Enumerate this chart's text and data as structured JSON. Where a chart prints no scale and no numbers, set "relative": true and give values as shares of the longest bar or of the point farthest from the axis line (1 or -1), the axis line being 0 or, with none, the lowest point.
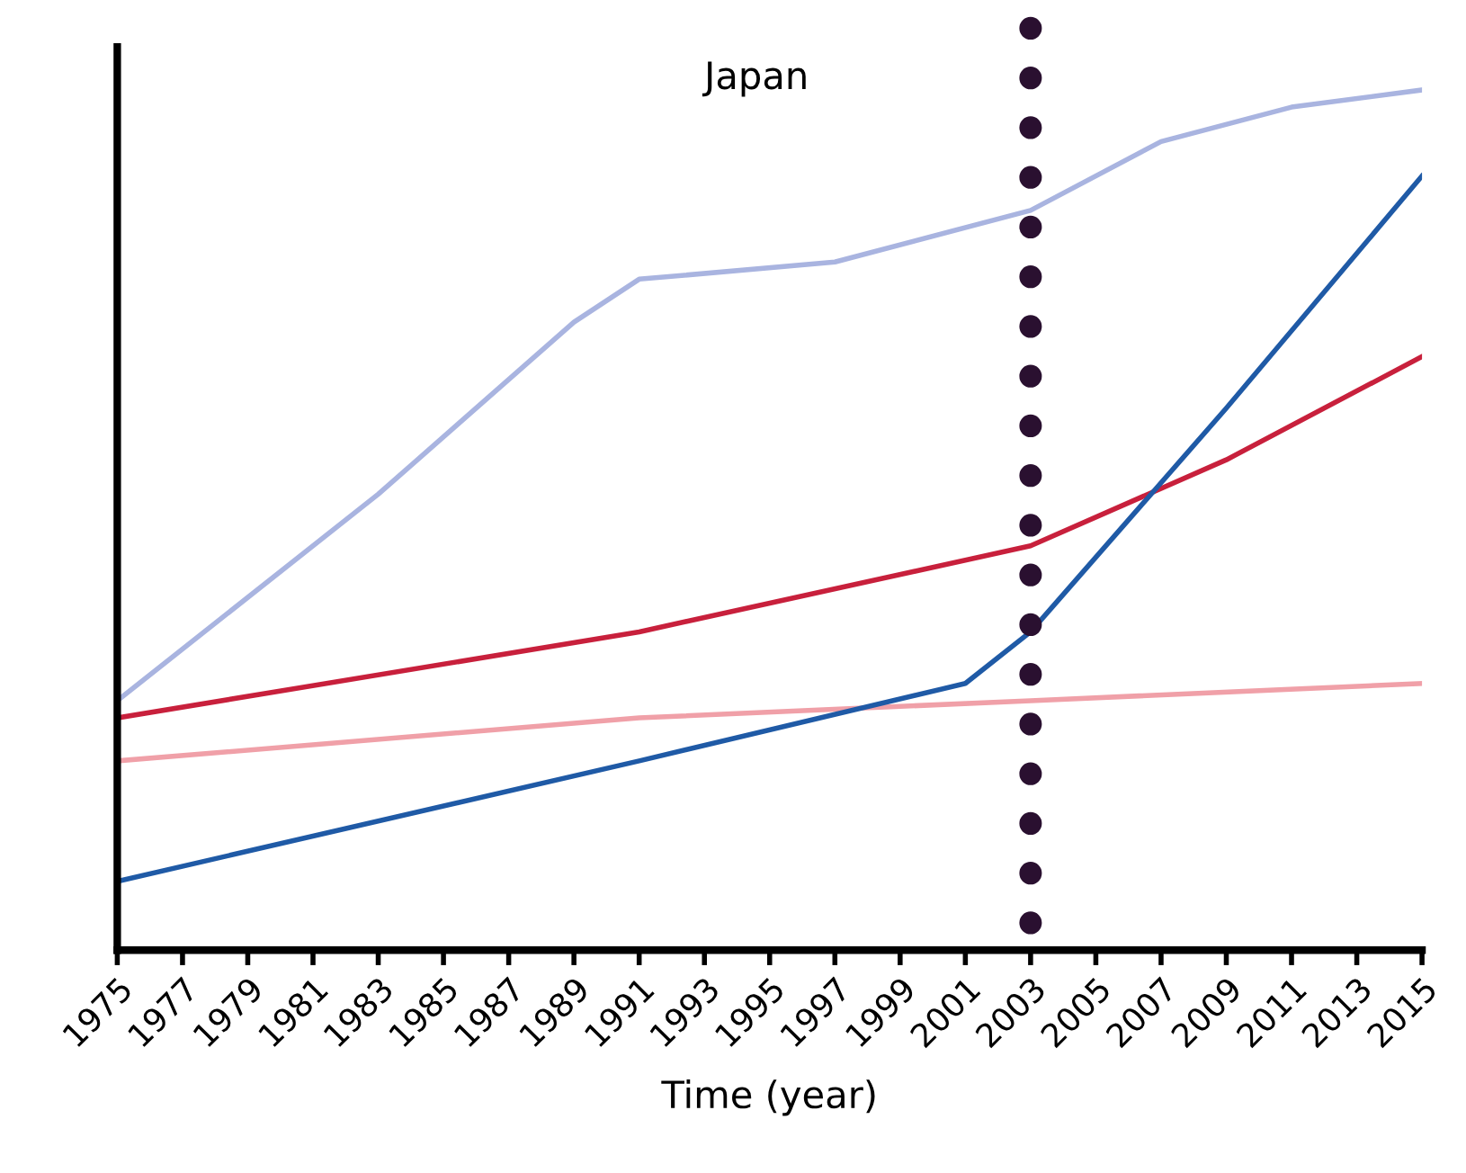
{
  "chart_data": {
    "type": "line",
    "title": "Japan",
    "xlabel": "Time (year)",
    "relative": true,
    "grid": false,
    "legend": false,
    "marker": "none",
    "line_style": "solid",
    "xlim": [
      1975,
      2015
    ],
    "xticks": [
      1975,
      1977,
      1979,
      1981,
      1983,
      1985,
      1987,
      1989,
      1991,
      1993,
      1995,
      1997,
      1999,
      2001,
      2003,
      2005,
      2007,
      2009,
      2011,
      2013,
      2015
    ],
    "series": [
      {
        "color": "#a9b4e0",
        "x": [
          1975,
          1983,
          1989,
          1991,
          1997,
          2003,
          2007,
          2011,
          2015
        ],
        "values": [
          0.29,
          0.53,
          0.73,
          0.78,
          0.8,
          0.86,
          0.94,
          0.98,
          1.0
        ]
      },
      {
        "color": "#f0a0a8",
        "x": [
          1975,
          1991,
          2003,
          2015
        ],
        "values": [
          0.22,
          0.27,
          0.29,
          0.31
        ]
      },
      {
        "color": "#c8203c",
        "x": [
          1975,
          1991,
          2003,
          2009,
          2015
        ],
        "values": [
          0.27,
          0.37,
          0.47,
          0.57,
          0.69
        ]
      },
      {
        "color": "#1f5aa6",
        "x": [
          1975,
          1991,
          2001,
          2003,
          2009,
          2015
        ],
        "values": [
          0.08,
          0.22,
          0.31,
          0.37,
          0.63,
          0.9
        ]
      }
    ],
    "ref_lines": [
      {
        "axis": "x",
        "value": 2003,
        "color": "#2a1030",
        "line_style": "dotted"
      }
    ]
  }
}
